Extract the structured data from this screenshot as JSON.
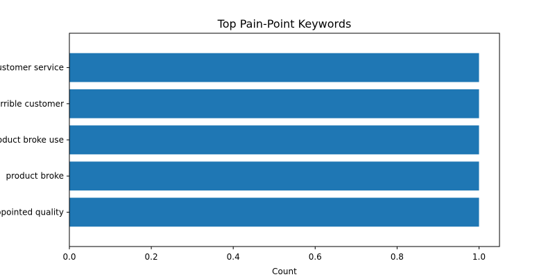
{
  "chart_data": {
    "type": "bar",
    "orientation": "horizontal",
    "title": "Top Pain-Point Keywords",
    "xlabel": "Count",
    "ylabel": "",
    "categories": [
      "customer service",
      "terrible customer",
      "product broke use",
      "product broke",
      "disappointed quality"
    ],
    "values": [
      1,
      1,
      1,
      1,
      1
    ],
    "xlim": [
      0,
      1.05
    ],
    "xticks": [
      "0.0",
      "0.2",
      "0.4",
      "0.6",
      "0.8",
      "1.0"
    ],
    "grid": false,
    "legend": "none",
    "bar_color": "#1f77b4"
  }
}
